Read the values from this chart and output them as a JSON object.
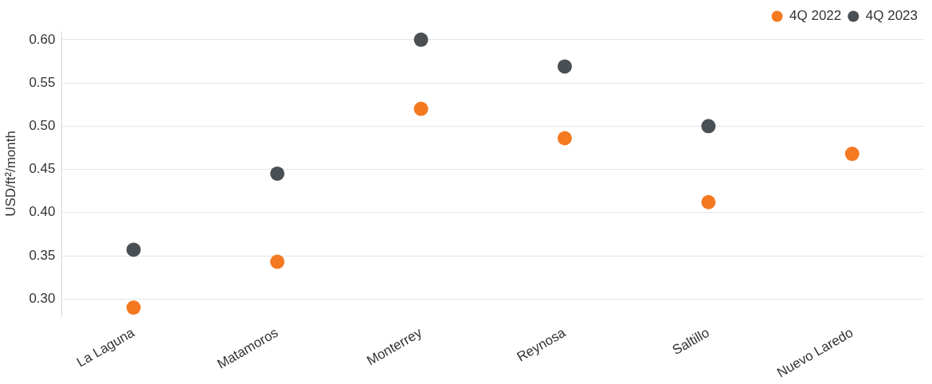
{
  "chart_data": {
    "type": "scatter",
    "ylabel": "USD/ft²/month",
    "categories": [
      "La Laguna",
      "Matamoros",
      "Monterrey",
      "Reynosa",
      "Saltillo",
      "Nuevo Laredo"
    ],
    "series": [
      {
        "name": "4Q 2022",
        "color": "#f47920",
        "values": [
          0.29,
          0.343,
          0.52,
          0.486,
          0.412,
          0.468
        ]
      },
      {
        "name": "4Q 2023",
        "color": "#4a4f54",
        "values": [
          0.357,
          0.445,
          0.6,
          0.569,
          0.5,
          null
        ]
      }
    ],
    "yticks": [
      {
        "value": 0.3,
        "label": "0.30"
      },
      {
        "value": 0.35,
        "label": "0.35"
      },
      {
        "value": 0.4,
        "label": "0.40"
      },
      {
        "value": 0.45,
        "label": "0.45"
      },
      {
        "value": 0.5,
        "label": "0.50"
      },
      {
        "value": 0.55,
        "label": "0.55"
      },
      {
        "value": 0.6,
        "label": "0.60"
      }
    ],
    "ylim": [
      0.28,
      0.61
    ],
    "grid": "y",
    "legend": "top right",
    "marker": "circle"
  }
}
